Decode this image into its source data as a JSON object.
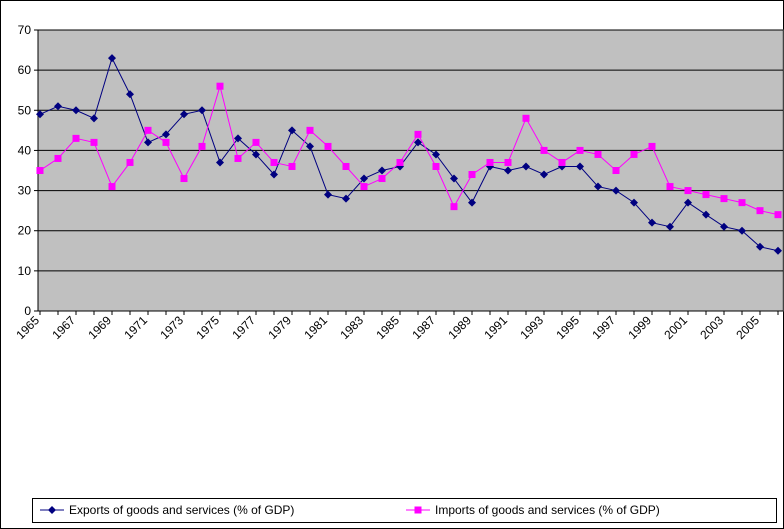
{
  "chart_data": {
    "type": "line",
    "categories": [
      "1965",
      null,
      "1967",
      null,
      "1969",
      null,
      "1971",
      null,
      "1973",
      null,
      "1975",
      null,
      "1977",
      null,
      "1979",
      null,
      "1981",
      null,
      "1983",
      null,
      "1985",
      null,
      "1987",
      null,
      "1989",
      null,
      "1991",
      null,
      "1993",
      null,
      "1995",
      null,
      "1997",
      null,
      "1999",
      null,
      "2001",
      null,
      "2003",
      null,
      "2005",
      null
    ],
    "series": [
      {
        "name": "Exports of goods and services (% of GDP)",
        "color": "#000080",
        "marker": "diamond",
        "values": [
          49,
          51,
          50,
          48,
          63,
          54,
          42,
          44,
          49,
          50,
          37,
          43,
          39,
          34,
          45,
          41,
          29,
          28,
          33,
          35,
          36,
          42,
          39,
          33,
          27,
          36,
          35,
          36,
          34,
          36,
          36,
          31,
          30,
          27,
          22,
          21,
          27,
          24,
          21,
          20,
          16,
          15
        ]
      },
      {
        "name": "Imports of goods and services (% of GDP)",
        "color": "#ff00ff",
        "marker": "square",
        "values": [
          35,
          38,
          43,
          42,
          31,
          37,
          45,
          42,
          33,
          41,
          56,
          38,
          42,
          37,
          36,
          45,
          41,
          36,
          31,
          33,
          37,
          44,
          36,
          26,
          34,
          37,
          37,
          48,
          40,
          37,
          40,
          39,
          35,
          39,
          41,
          31,
          30,
          29,
          28,
          27,
          25,
          24
        ]
      }
    ],
    "ylim": [
      0,
      70
    ],
    "yticks": [
      0,
      10,
      20,
      30,
      40,
      50,
      60,
      70
    ],
    "grid": true,
    "legend": "bottom"
  }
}
